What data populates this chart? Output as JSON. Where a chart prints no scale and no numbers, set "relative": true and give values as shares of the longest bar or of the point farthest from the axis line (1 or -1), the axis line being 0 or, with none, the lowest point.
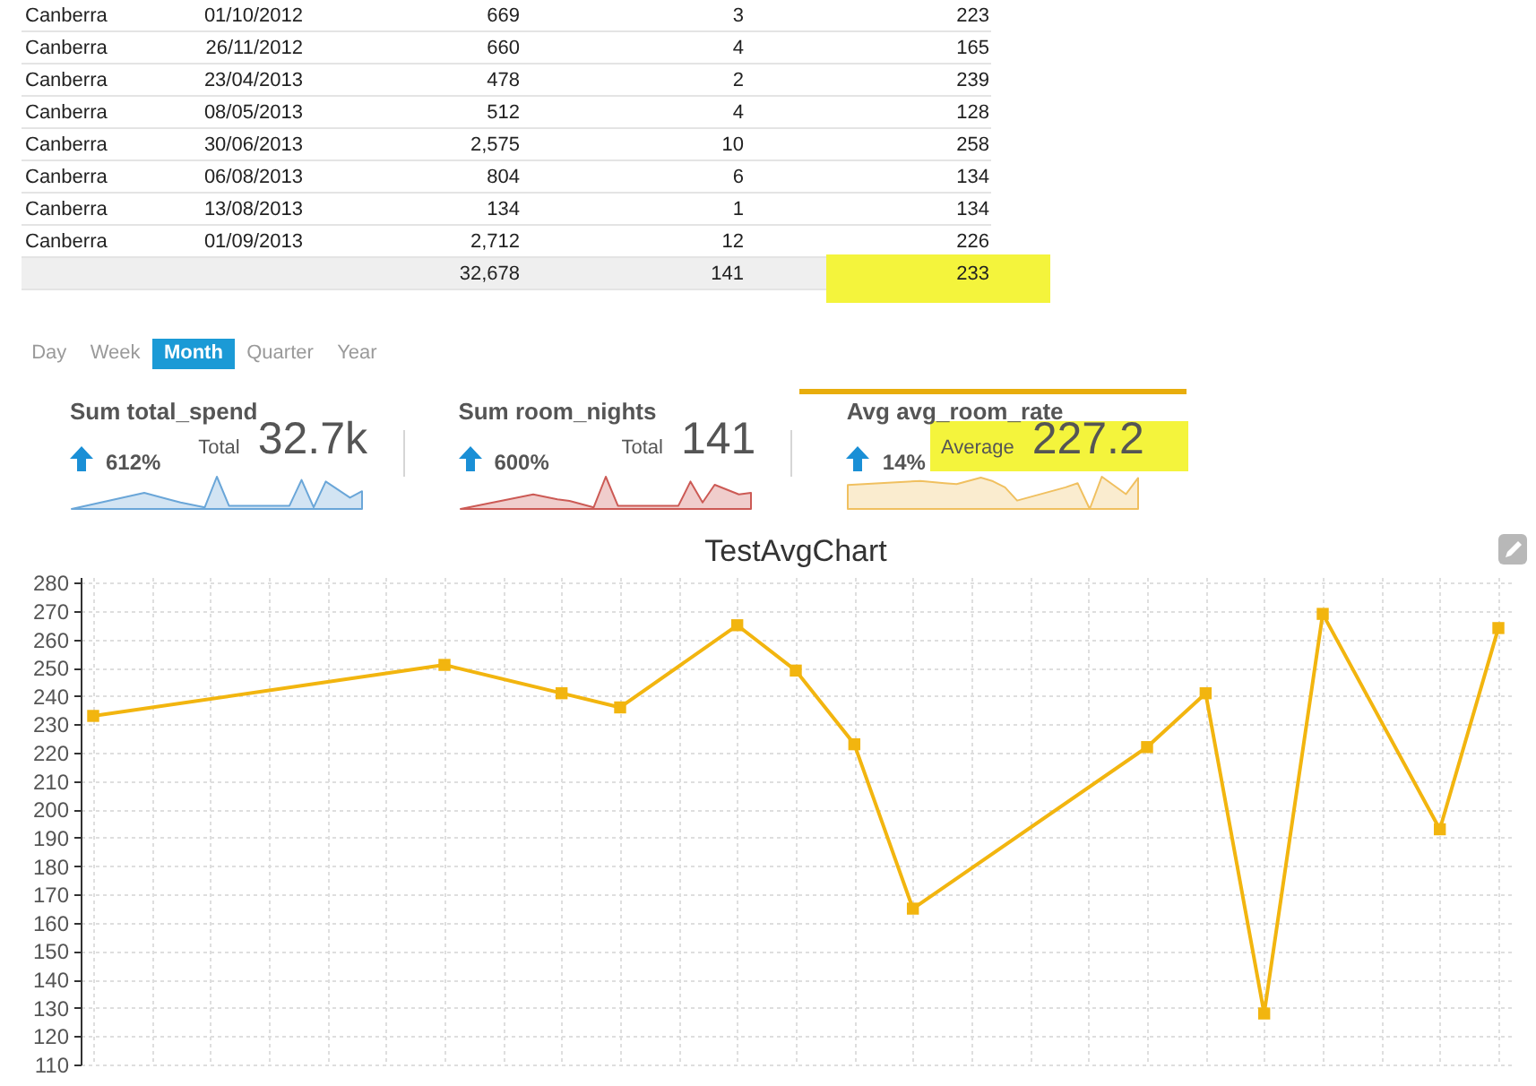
{
  "chart_data": [
    {
      "type": "other",
      "categories": [
        null,
        null,
        null,
        null
      ],
      "y_categories": [
        "Canberra",
        "Canberra",
        "Canberra",
        "Canberra",
        "Canberra",
        "Canberra",
        "Canberra",
        "Canberra",
        null
      ],
      "cell_labels": [
        [
          "01/10/2012",
          "669",
          "3",
          "223"
        ],
        [
          "26/11/2012",
          "660",
          "4",
          "165"
        ],
        [
          "23/04/2013",
          "478",
          "2",
          "239"
        ],
        [
          "08/05/2013",
          "512",
          "4",
          "128"
        ],
        [
          "30/06/2013",
          "2,575",
          "10",
          "258"
        ],
        [
          "06/08/2013",
          "804",
          "6",
          "134"
        ],
        [
          "13/08/2013",
          "134",
          "1",
          "134"
        ],
        [
          "01/09/2013",
          "2,712",
          "12",
          "226"
        ],
        [
          null,
          "32,678",
          "141",
          "233"
        ]
      ]
    },
    {
      "type": "other",
      "categories": [
        "Day",
        "Week",
        "Month",
        "Quarter",
        "Year"
      ],
      "colors": [
        "#ffffff",
        "#ffffff",
        "#1b9ad6",
        "#ffffff",
        "#ffffff"
      ]
    },
    {
      "type": "area",
      "title": "Sum total_spend",
      "annotations": [
        "612%",
        "Total",
        "32.7k"
      ],
      "relative": true,
      "tick_labels": false,
      "categories": [
        null,
        null,
        null,
        null,
        null,
        null,
        null,
        null,
        null,
        null,
        null,
        null,
        null,
        null,
        null,
        null,
        null,
        null,
        null,
        null,
        null,
        null,
        null,
        null,
        null
      ],
      "series": [
        {
          "color": "#6aa6d8",
          "values": [
            0,
            null,
            null,
            null,
            null,
            null,
            0.5,
            null,
            0.3,
            0.2,
            null,
            0.05,
            1,
            0.1,
            0.1,
            null,
            null,
            null,
            0.1,
            0.9,
            0.05,
            0.85,
            null,
            0.35,
            0.55
          ]
        }
      ]
    },
    {
      "type": "area",
      "title": "Sum room_nights",
      "annotations": [
        "600%",
        "Total",
        "141"
      ],
      "relative": true,
      "tick_labels": false,
      "categories": [
        null,
        null,
        null,
        null,
        null,
        null,
        null,
        null,
        null,
        null,
        null,
        null,
        null,
        null,
        null,
        null,
        null,
        null,
        null,
        null,
        null,
        null,
        null,
        null,
        null
      ],
      "series": [
        {
          "color": "#cc5a55",
          "values": [
            0,
            null,
            null,
            null,
            null,
            null,
            0.45,
            null,
            0.3,
            0.25,
            null,
            0.05,
            1,
            0.1,
            0.1,
            null,
            null,
            null,
            0.1,
            0.85,
            0.2,
            0.75,
            null,
            0.45,
            0.5
          ]
        }
      ]
    },
    {
      "type": "area",
      "title": "Avg avg_room_rate",
      "annotations": [
        "14%",
        "Average",
        "227.2"
      ],
      "relative": true,
      "tick_labels": false,
      "categories": [
        null,
        null,
        null,
        null,
        null,
        null,
        null,
        null,
        null,
        null,
        null,
        null,
        null,
        null,
        null,
        null,
        null,
        null,
        null,
        null,
        null,
        null,
        null,
        null,
        null
      ],
      "series": [
        {
          "color": "#f0c060",
          "values": [
            0.74,
            null,
            null,
            null,
            null,
            null,
            0.87,
            null,
            0.8,
            0.77,
            null,
            0.97,
            0.86,
            0.67,
            0.26,
            null,
            null,
            null,
            0.67,
            0.8,
            0,
            1,
            null,
            0.46,
            0.96
          ]
        }
      ]
    },
    {
      "type": "line",
      "title": "TestAvgChart",
      "categories": [
        null,
        null,
        null,
        null,
        null,
        null,
        null,
        null,
        null,
        null,
        null,
        null,
        null,
        null,
        null,
        null,
        null,
        null,
        null,
        null,
        null,
        null,
        null,
        null,
        null
      ],
      "series": [
        {
          "color": "#f2b50f",
          "values": [
            233,
            null,
            null,
            null,
            null,
            null,
            251,
            null,
            241,
            236,
            null,
            265,
            249,
            223,
            165,
            null,
            null,
            null,
            222,
            241,
            128,
            269,
            null,
            193,
            264
          ]
        }
      ],
      "ylim": [
        110,
        282
      ],
      "yticks": [
        110,
        120,
        130,
        140,
        150,
        160,
        170,
        180,
        190,
        200,
        210,
        220,
        230,
        240,
        250,
        260,
        270,
        280
      ],
      "grid": true,
      "marker": "square",
      "line_style": "solid",
      "tick_labels": "y"
    }
  ]
}
